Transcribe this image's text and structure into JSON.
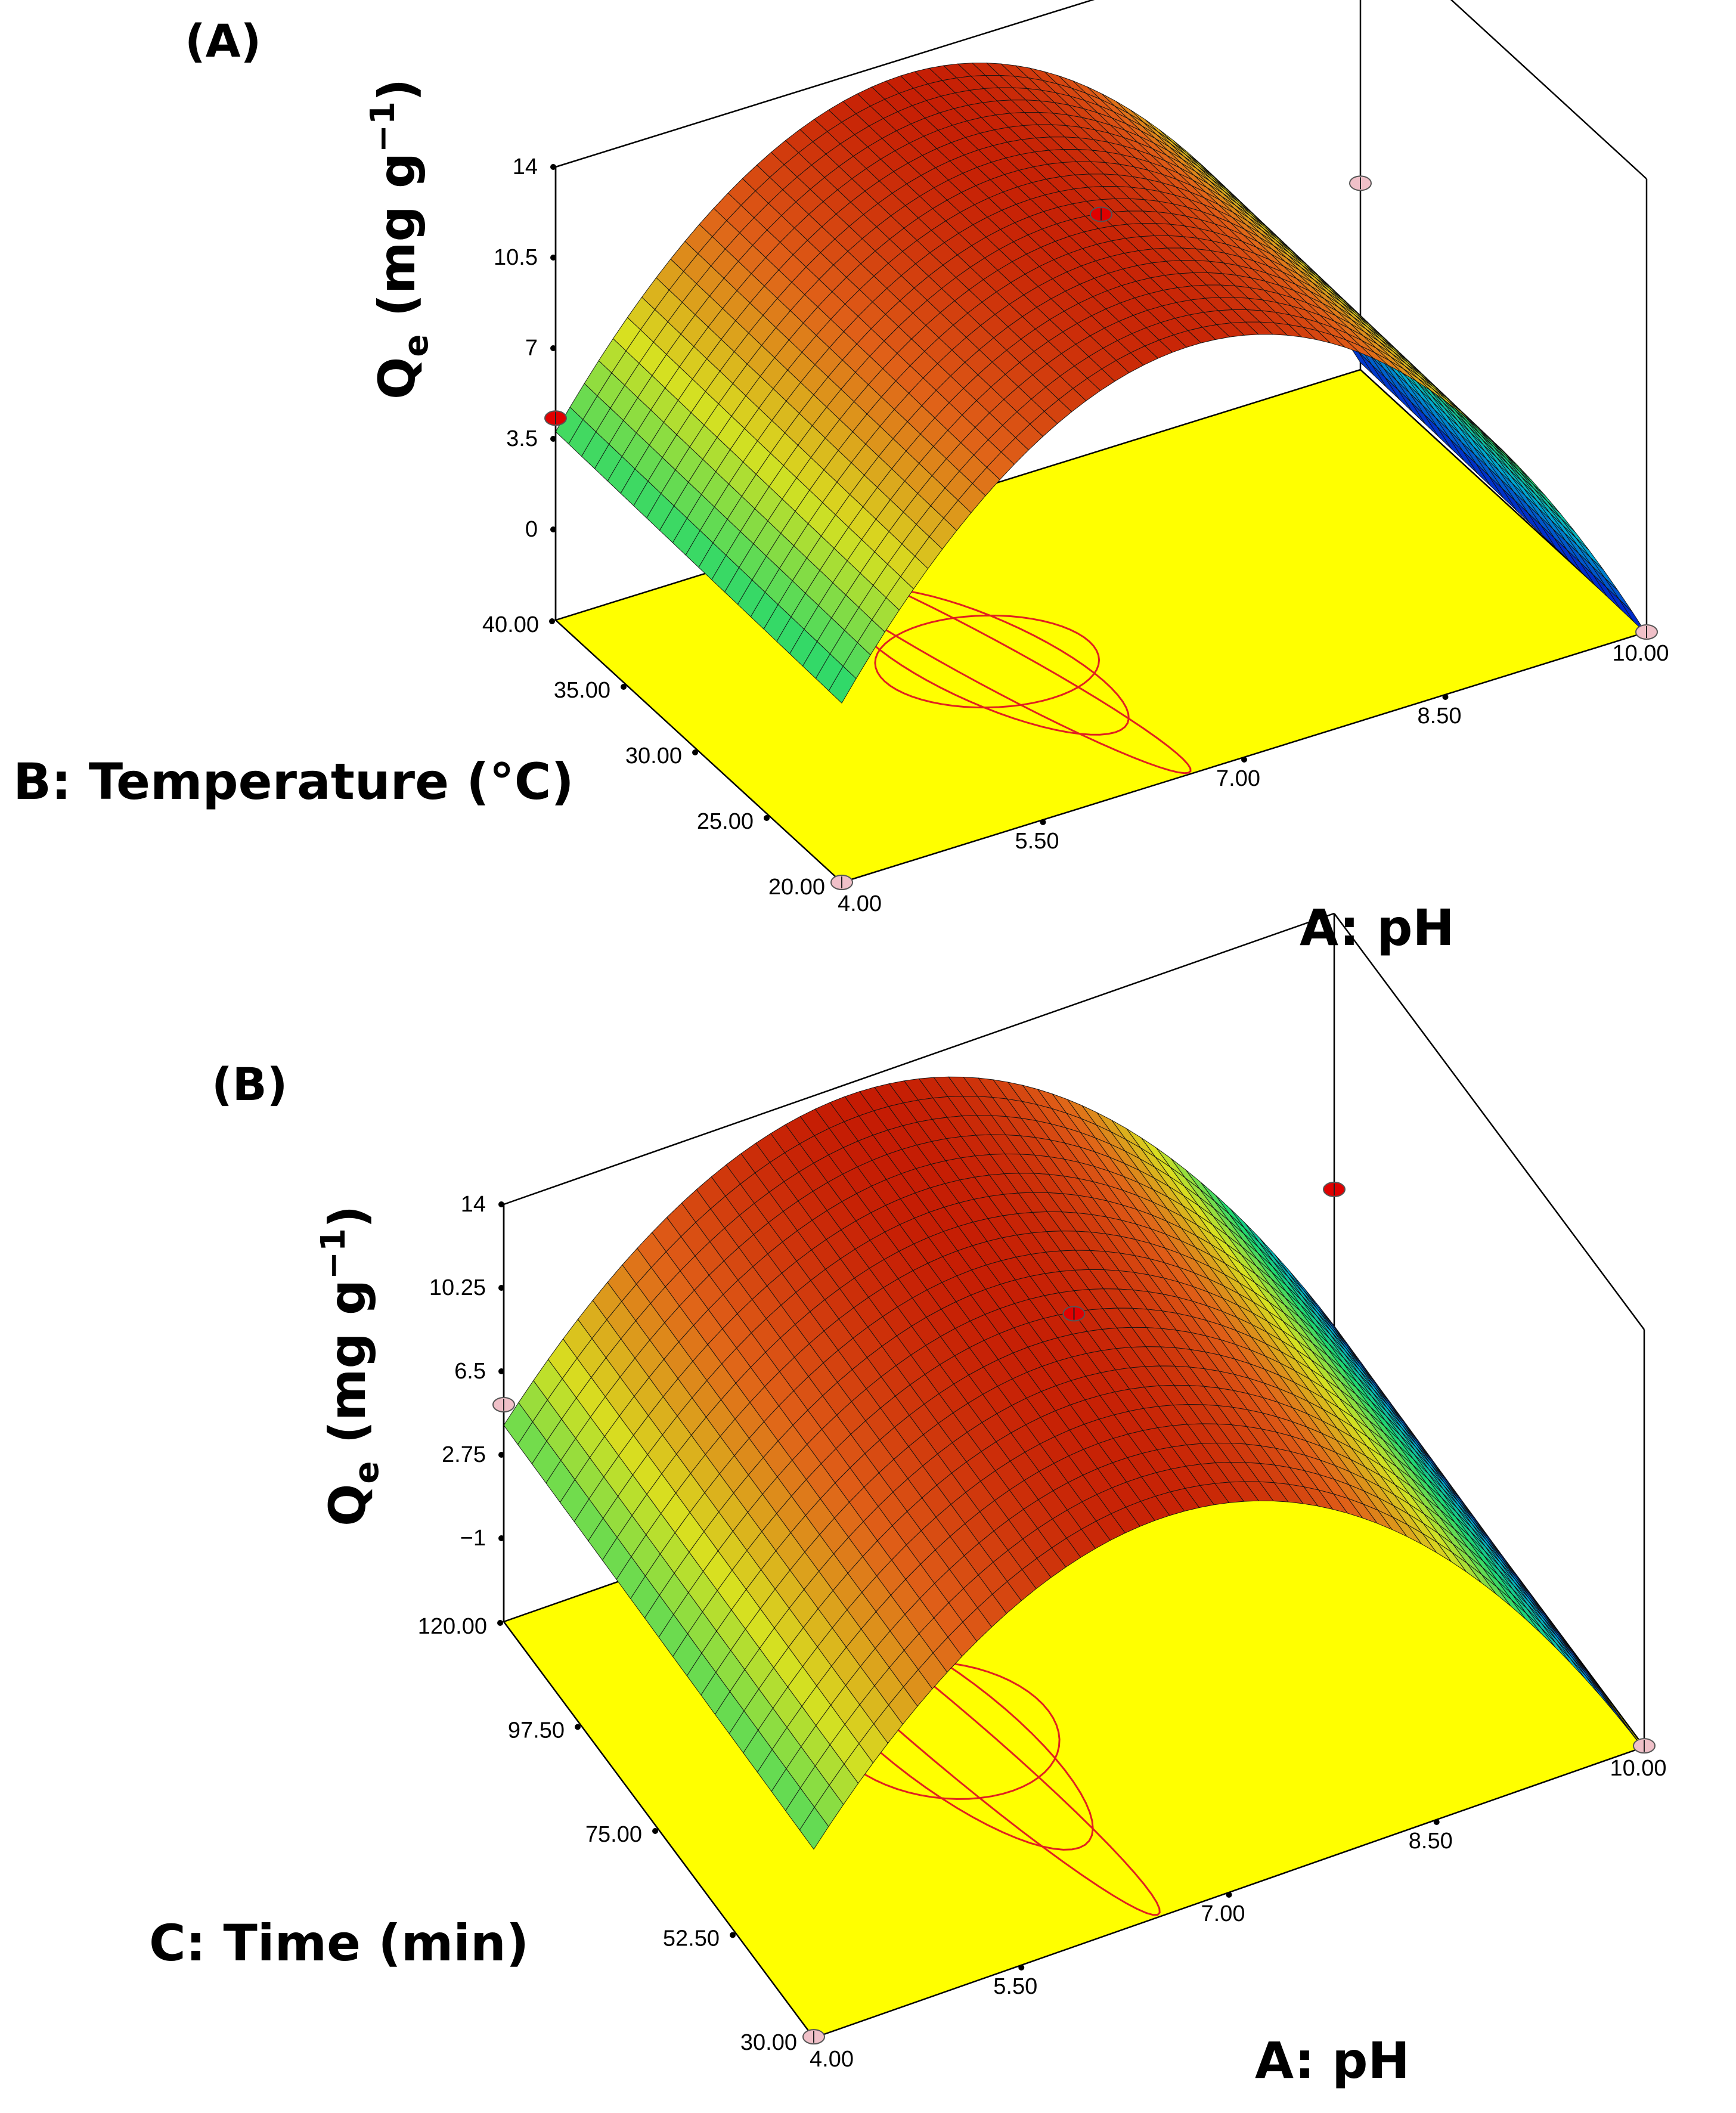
{
  "chart_data": [
    {
      "panel": "(A)",
      "type": "surface3d",
      "title": "",
      "zlabel": "Qe (mg g−1)",
      "zlabel_main": "Q",
      "zlabel_sub": "e",
      "zlabel_rest": " (mg g",
      "zlabel_sup": "−1",
      "zlabel_close": ")",
      "xlabel": "A: pH",
      "ylabel": "B: Temperature (°C)",
      "x_range": [
        4.0,
        10.0
      ],
      "y_range": [
        20.0,
        40.0
      ],
      "z_range": [
        -3.5,
        14
      ],
      "x_ticks": [
        "4.00",
        "5.50",
        "7.00",
        "8.50",
        "10.00"
      ],
      "y_ticks": [
        "20.00",
        "25.00",
        "30.00",
        "35.00",
        "40.00"
      ],
      "z_ticks": [
        "0",
        "3.5",
        "7",
        "10.5",
        "14"
      ],
      "z_tick_values": [
        0,
        3.5,
        7,
        10.5,
        14
      ],
      "surface": {
        "peak_x": 6.6,
        "peak_z": 13.2,
        "z_at_x4": 3.6,
        "z_at_x10": -3.4
      },
      "design_points": [
        {
          "x": 4.0,
          "y": 40.0,
          "z": 4.3,
          "color": "#e00000"
        },
        {
          "x": 7.0,
          "y": 30.0,
          "z": 12.4,
          "color": "#e00000"
        },
        {
          "x": 10.0,
          "y": 40.0,
          "z": 3.7,
          "color": "#f0c0c8"
        },
        {
          "x": 4.0,
          "y": 20.0,
          "z": -3.5,
          "color": "#f0c0c8"
        },
        {
          "x": 10.0,
          "y": 20.0,
          "z": -3.5,
          "color": "#f0c0c8"
        }
      ]
    },
    {
      "panel": "(B)",
      "type": "surface3d",
      "title": "",
      "zlabel": "Qe (mg g−1)",
      "zlabel_main": "Q",
      "zlabel_sub": "e",
      "zlabel_rest": " (mg g",
      "zlabel_sup": "−1",
      "zlabel_close": ")",
      "xlabel": "A: pH",
      "ylabel": "C: Time (min)",
      "x_range": [
        4.0,
        10.0
      ],
      "y_range": [
        30.0,
        120.0
      ],
      "z_range": [
        -4.75,
        14
      ],
      "x_ticks": [
        "4.00",
        "5.50",
        "7.00",
        "8.50",
        "10.00"
      ],
      "y_ticks": [
        "30.00",
        "52.50",
        "75.00",
        "97.50",
        "120.00"
      ],
      "z_ticks": [
        "−1",
        "2.75",
        "6.5",
        "10.25",
        "14"
      ],
      "z_tick_values": [
        -1,
        2.75,
        6.5,
        10.25,
        14
      ],
      "surface": {
        "peak_x": 6.5,
        "peak_z": 13.3,
        "z_at_x4": 3.9,
        "z_at_x10": -4.7
      },
      "design_points": [
        {
          "x": 4.0,
          "y": 120.0,
          "z": 5.0,
          "color": "#f0c0c8"
        },
        {
          "x": 7.0,
          "y": 75.0,
          "z": 11.9,
          "color": "#e00000"
        },
        {
          "x": 10.0,
          "y": 120.0,
          "z": 1.6,
          "color": "#e00000"
        },
        {
          "x": 4.0,
          "y": 30.0,
          "z": -4.7,
          "color": "#f0c0c8"
        },
        {
          "x": 10.0,
          "y": 30.0,
          "z": -4.7,
          "color": "#f0c0c8"
        }
      ]
    }
  ]
}
